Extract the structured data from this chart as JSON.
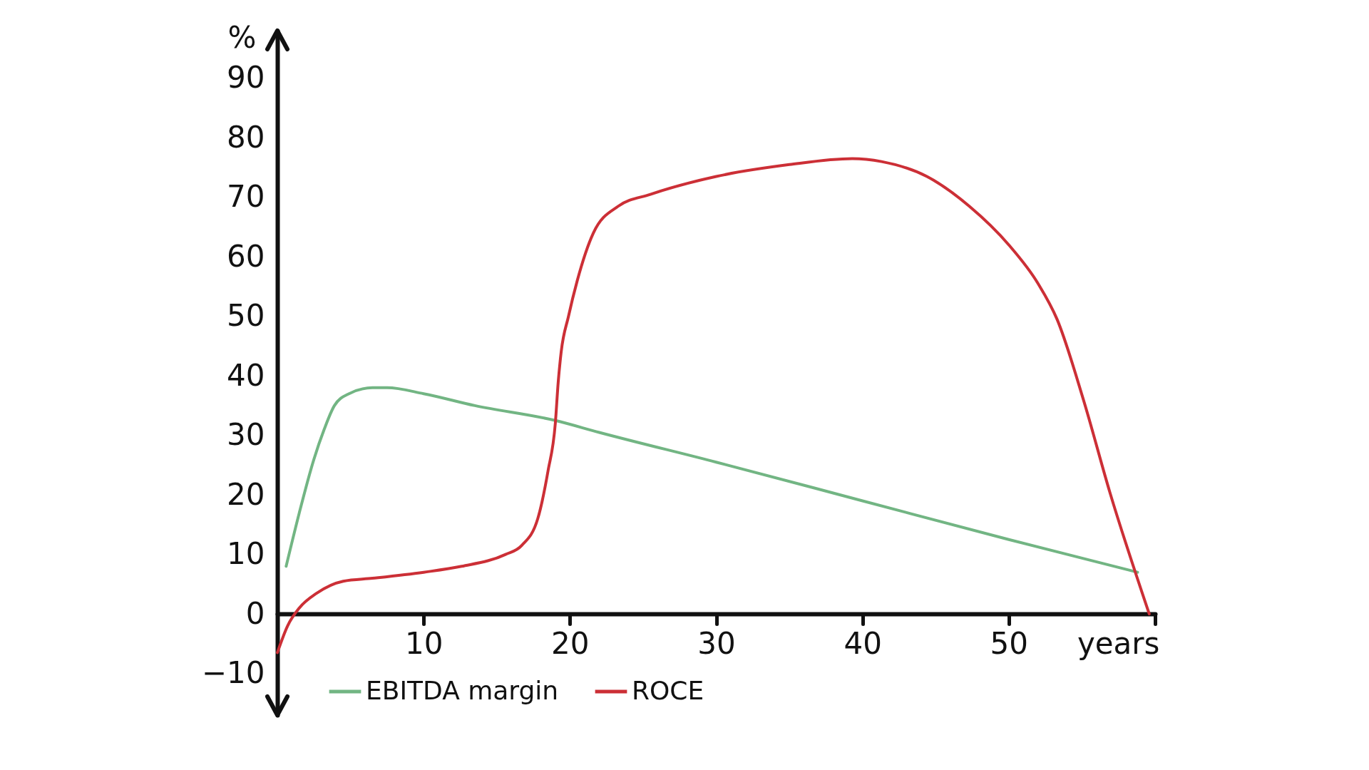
{
  "chart_data": {
    "type": "line",
    "xlabel": "years",
    "ylabel": "%",
    "xlim": [
      0,
      60
    ],
    "xticks": [
      10,
      20,
      30,
      40,
      50,
      {
        "value": 60,
        "label": null
      }
    ],
    "ylim": [
      -17,
      98
    ],
    "yticks": [
      -10,
      0,
      10,
      20,
      30,
      40,
      50,
      60,
      70,
      80,
      90
    ],
    "legend": "bottom left",
    "series": [
      {
        "name": "EBITDA margin",
        "color": "#72b583",
        "x": [
          0.6,
          1.5,
          2.5,
          3.2,
          3.9,
          4.9,
          6.5,
          7.5,
          10,
          13.5,
          19,
          22,
          30,
          40,
          50,
          58.8
        ],
        "values": [
          8,
          17,
          26,
          31,
          35,
          37,
          38,
          38,
          37,
          35,
          32.5,
          30.5,
          25.5,
          19,
          12.5,
          7
        ]
      },
      {
        "name": "ROCE",
        "color": "#cc2f36",
        "x": [
          0,
          0.7,
          1.5,
          2.7,
          4.5,
          6.5,
          10,
          12.6,
          15.6,
          16.7,
          17.8,
          18.5,
          19,
          19.2,
          19.4,
          19.9,
          20.5,
          21.6,
          23.3,
          25.5,
          30,
          35,
          39.3,
          41.3,
          44.4,
          47.3,
          50,
          52,
          53.3,
          55.1,
          56.9,
          59.6
        ],
        "values": [
          -6.5,
          -2,
          1,
          3.5,
          5.5,
          6,
          7,
          8,
          10,
          11.5,
          16,
          24,
          32,
          39,
          44,
          50,
          56,
          64,
          68.5,
          70.5,
          73.5,
          75.5,
          76.5,
          76,
          73.5,
          68.5,
          62,
          55.5,
          49.5,
          36,
          20.5,
          0
        ]
      }
    ]
  }
}
